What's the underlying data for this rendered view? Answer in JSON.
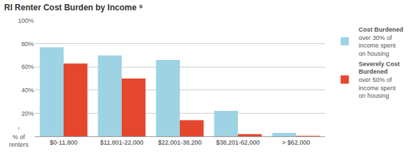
{
  "chart_data": {
    "type": "bar",
    "title": "RI Renter Cost Burden by Income ⁹",
    "y_label": "↑ % of renters",
    "categories": [
      "$0-11,800",
      "$11,801-22,000",
      "$22,001-38,200",
      "$38,201-62,000",
      "> $62,000"
    ],
    "series": [
      {
        "name": "Cost Burdened",
        "description": "over 30% of income spent on housing",
        "color": "#9dd3e3",
        "values": [
          77,
          70,
          66,
          22,
          3
        ]
      },
      {
        "name": "Severely Cost Burdened",
        "description": "over 50% of income spent on housing",
        "color": "#e4472d",
        "values": [
          63,
          50,
          14,
          2,
          0.5
        ]
      }
    ],
    "ylim": [
      0,
      100
    ],
    "yticks": [
      {
        "value": 20,
        "label": "20%"
      },
      {
        "value": 40,
        "label": "40%"
      },
      {
        "value": 60,
        "label": "60%"
      },
      {
        "value": 80,
        "label": "80%"
      },
      {
        "value": 100,
        "label": "100%"
      }
    ],
    "grid": true,
    "legend": "right"
  }
}
